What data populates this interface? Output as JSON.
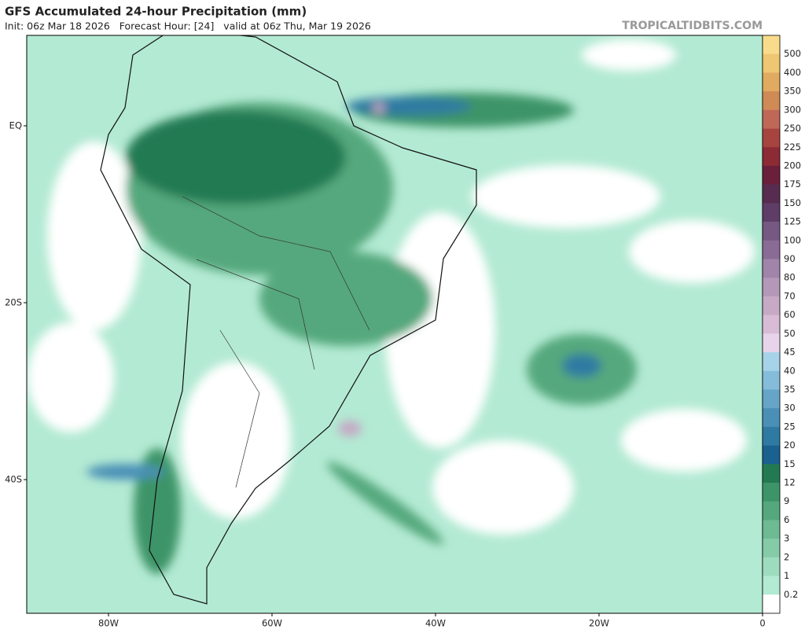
{
  "header": {
    "title": "GFS Accumulated 24-hour Precipitation (mm)",
    "subtitle": "Init: 06z Mar 18 2026   Forecast Hour: [24]   valid at 06z Thu, Mar 19 2026",
    "site": "TROPICALTIDBITS.COM"
  },
  "map": {
    "lat_labels": [
      "EQ",
      "20S",
      "40S"
    ],
    "lon_labels": [
      "80W",
      "60W",
      "40W",
      "20W",
      "0"
    ]
  },
  "colorbar": {
    "labels": [
      500,
      400,
      350,
      300,
      250,
      225,
      200,
      175,
      150,
      125,
      100,
      90,
      80,
      70,
      60,
      50,
      45,
      40,
      35,
      30,
      25,
      20,
      15,
      12,
      9,
      6,
      3,
      2,
      1,
      0.2
    ],
    "colors": [
      "#f8dc8c",
      "#efc672",
      "#e0aa60",
      "#cf8a56",
      "#bf6858",
      "#a8443f",
      "#8c2a35",
      "#6a1f3a",
      "#582c50",
      "#5e3e66",
      "#765982",
      "#8a6b96",
      "#a084aa",
      "#b498b8",
      "#c5a9c5",
      "#d8bcd6",
      "#e8d4ea",
      "#a7d3ea",
      "#85bcda",
      "#66a5c8",
      "#4a8fb6",
      "#2e7aa3",
      "#1a6190",
      "#237a52",
      "#3d9468",
      "#55a87d",
      "#6dba93",
      "#85cba8",
      "#9edcc0",
      "#b3ead3",
      "#ffffff"
    ]
  }
}
